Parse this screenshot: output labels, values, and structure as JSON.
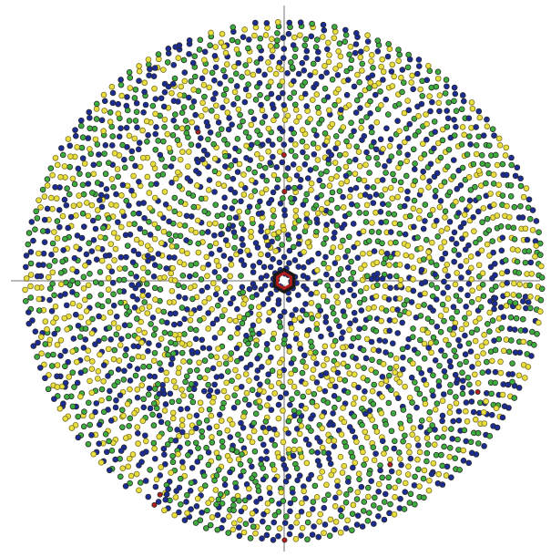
{
  "diagram": {
    "kind": "radial-lattice-pattern",
    "symmetry_order": 12,
    "colors": {
      "background": "#ffffff",
      "axis": "#b9b9b9",
      "blue": "#1b2d95",
      "green": "#3dad3d",
      "yellow": "#e7de3f",
      "red": "#b21d1d",
      "dark_outline": "#262626"
    },
    "center_marker": {
      "shape": "hexagon-ring",
      "fill": "#ffffff",
      "outer": "#1a1a1a",
      "inner": "#b21d1d"
    },
    "legend": []
  }
}
